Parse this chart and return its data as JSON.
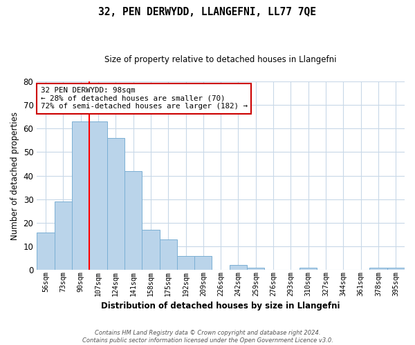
{
  "title": "32, PEN DERWYDD, LLANGEFNI, LL77 7QE",
  "subtitle": "Size of property relative to detached houses in Llangefni",
  "xlabel": "Distribution of detached houses by size in Llangefni",
  "ylabel": "Number of detached properties",
  "footnote": "Contains HM Land Registry data © Crown copyright and database right 2024.\nContains public sector information licensed under the Open Government Licence v3.0.",
  "bin_labels": [
    "56sqm",
    "73sqm",
    "90sqm",
    "107sqm",
    "124sqm",
    "141sqm",
    "158sqm",
    "175sqm",
    "192sqm",
    "209sqm",
    "226sqm",
    "242sqm",
    "259sqm",
    "276sqm",
    "293sqm",
    "310sqm",
    "327sqm",
    "344sqm",
    "361sqm",
    "378sqm",
    "395sqm"
  ],
  "bar_values": [
    16,
    29,
    63,
    63,
    56,
    42,
    17,
    13,
    6,
    6,
    0,
    2,
    1,
    0,
    0,
    1,
    0,
    0,
    0,
    1,
    1
  ],
  "bar_color": "#bad4ea",
  "bar_edge_color": "#7aafd4",
  "red_line_index": 2.5,
  "annotation_text": "32 PEN DERWYDD: 98sqm\n← 28% of detached houses are smaller (70)\n72% of semi-detached houses are larger (182) →",
  "annotation_box_color": "#ffffff",
  "annotation_box_edge": "#cc0000",
  "ylim": [
    0,
    80
  ],
  "yticks": [
    0,
    10,
    20,
    30,
    40,
    50,
    60,
    70,
    80
  ],
  "background_color": "#ffffff",
  "grid_color": "#c8d8e8"
}
